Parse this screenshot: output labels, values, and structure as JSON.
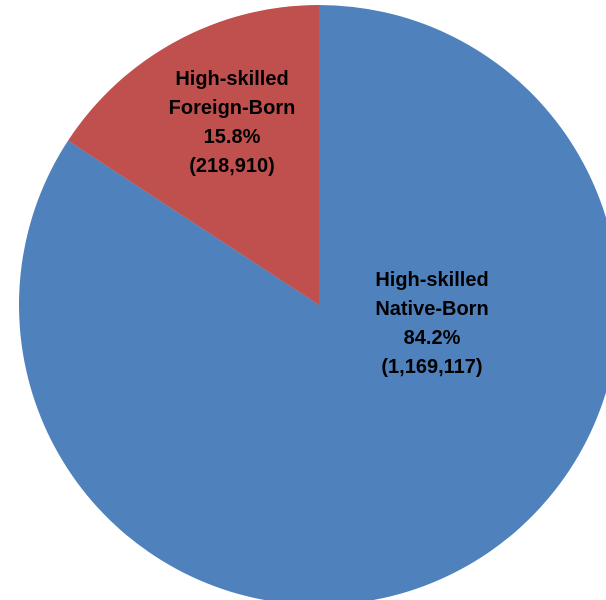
{
  "chart_data": {
    "type": "pie",
    "title": "",
    "slices": [
      {
        "name": "High-skilled Native-Born",
        "label_lines": [
          "High-skilled",
          "Native-Born"
        ],
        "percent_label": "84.2%",
        "value_label": "(1,169,117)",
        "value": 1169117,
        "percent": 84.2,
        "color": "#4F81BD"
      },
      {
        "name": "High-skilled Foreign-Born",
        "label_lines": [
          "High-skilled",
          "Foreign-Born"
        ],
        "percent_label": "15.8%",
        "value_label": "(218,910)",
        "value": 218910,
        "percent": 15.8,
        "color": "#C0504D"
      }
    ]
  }
}
